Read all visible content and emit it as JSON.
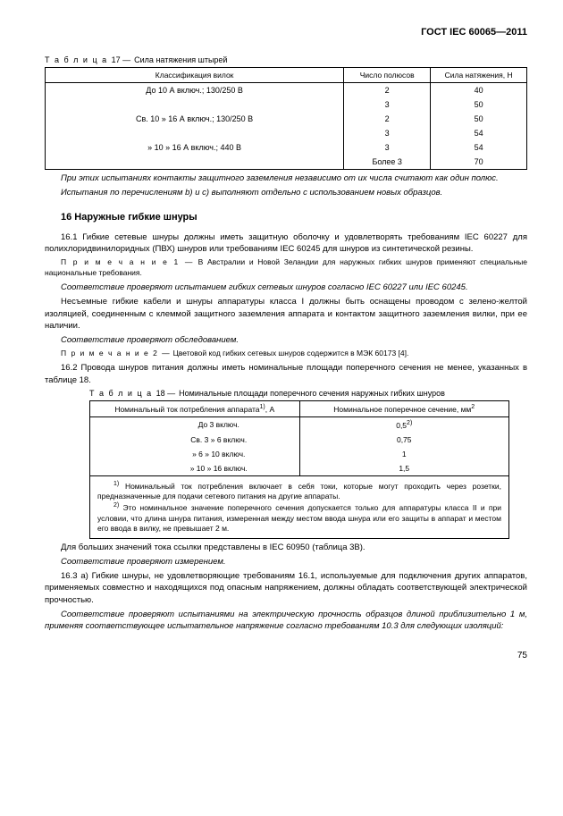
{
  "header": {
    "doc_id": "ГОСТ IEC 60065—2011"
  },
  "table17": {
    "caption_prefix": "Т а б л и ц а",
    "caption_num": "17 —",
    "caption_title": "Сила натяжения штырей",
    "headers": [
      "Классификация вилок",
      "Число полюсов",
      "Сила натяжения, Н"
    ],
    "rows": [
      {
        "class": "До 10 А включ.; 130/250 В",
        "poles": "2",
        "force": "40"
      },
      {
        "class": "",
        "poles": "3",
        "force": "50"
      },
      {
        "class": "Св.  10    »    16 А включ.; 130/250 В",
        "poles": "2",
        "force": "50"
      },
      {
        "class": "",
        "poles": "3",
        "force": "54"
      },
      {
        "class": "»    10    »    16 А включ.;  440 В",
        "poles": "3",
        "force": "54"
      },
      {
        "class": "",
        "poles": "Более  3",
        "force": "70"
      }
    ]
  },
  "body": {
    "p1": "При этих испытаниях контакты защитного заземления независимо от их числа считают как один полюс.",
    "p2": "Испытания по перечислениям b) и c) выполняют отдельно с использованием новых образцов.",
    "sec16_title": "16 Наружные гибкие шнуры",
    "p16_1": "16.1 Гибкие сетевые шнуры должны иметь защитную оболочку и удовлетворять требованиям IEC 60227 для полихлоридвинилоридных (ПВХ) шнуров или требованиям IEC 60245 для шнуров из синтетической резины.",
    "note1_label": "П р и м е ч а н и е  1 —",
    "note1": "В Австралии и Новой Зеландии для наружных гибких шнуров применяют специальные национальные требования.",
    "p16_1a": "Соответствие проверяют испытанием гибких сетевых шнуров согласно IEC 60227 или IEC 60245.",
    "p16_1b": "Несъемные гибкие кабели и шнуры аппаратуры класса I должны быть оснащены проводом с зелено-желтой изоляцией, соединенным с клеммой защитного заземления аппарата и контактом защитного заземления вилки, при ее наличии.",
    "p16_1c": "Соответствие проверяют обследованием.",
    "note2_label": "П р и м е ч а н и е  2 —",
    "note2": "Цветовой код гибких сетевых шнуров содержится в МЭК 60173 [4].",
    "p16_2": "16.2 Провода шнуров питания должны иметь номинальные площади поперечного сечения не менее, указанных в таблице 18."
  },
  "table18": {
    "caption_prefix": "Т а б л и ц а",
    "caption_num": "18 —",
    "caption_title": "Номинальные площади поперечного сечения наружных гибких шнуров",
    "h1_pre": "Номинальный ток потребления аппарата",
    "h1_suf": ", А",
    "h2_pre": "Номинальное поперечное сечение, мм",
    "rows": [
      {
        "amp": "До   3 включ.",
        "sec_val": "0,5",
        "sec_note": "2)"
      },
      {
        "amp": "Св.  3   »   6 включ.",
        "sec_val": "0,75",
        "sec_note": ""
      },
      {
        "amp": "»    6   »  10 включ.",
        "sec_val": "1",
        "sec_note": ""
      },
      {
        "amp": "»   10   »  16 включ.",
        "sec_val": "1,5",
        "sec_note": ""
      }
    ],
    "foot1_sup": "1)",
    "foot1": " Номинальный ток потребления включает в себя токи, которые могут проходить через розетки, предназначенные для подачи сетевого питания на другие аппараты.",
    "foot2_sup": "2)",
    "foot2": " Это номинальное значение поперечного сечения допускается только для аппаратуры класса II и при условии, что длина шнура питания, измеренная между местом ввода шнура или его защиты в аппарат и местом его ввода в вилку, не превышает 2 м."
  },
  "tail": {
    "p1": "Для больших значений тока ссылки представлены в IEC 60950 (таблица 3В).",
    "p2": "Соответствие проверяют измерением.",
    "p3": "16.3 a) Гибкие шнуры, не удовлетворяющие требованиям 16.1, используемые для подключения других аппаратов, применяемых совместно и находящихся под опасным напряжением, должны обладать соответствующей электрической прочностью.",
    "p4": "Соответствие проверяют испытаниями на электрическую прочность образцов длиной приблизительно 1 м, применяя соответствующее испытательное напряжение согласно требованиям 10.3 для следующих изоляций:"
  },
  "page_number": "75"
}
